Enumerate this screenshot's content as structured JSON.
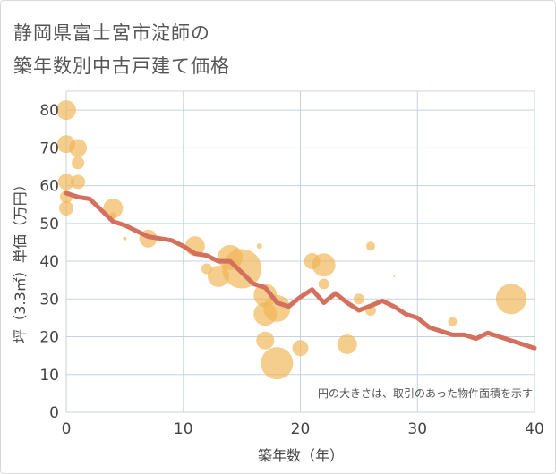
{
  "title_line1": "静岡県富士宮市淀師の",
  "title_line2": "築年数別中古戸建て価格",
  "chart_data": {
    "type": "scatter",
    "xlabel": "築年数（年）",
    "ylabel": "坪（3.3㎡）単価（万円）",
    "xlim": [
      0,
      40
    ],
    "ylim": [
      0,
      85
    ],
    "x_ticks": [
      "0",
      "10",
      "20",
      "30",
      "40"
    ],
    "y_ticks": [
      "0",
      "10",
      "20",
      "30",
      "40",
      "50",
      "60",
      "70",
      "80"
    ],
    "grid": true,
    "note": "円の大きさは、取引のあった物件面積を示す",
    "colors": {
      "bubble": "#f0b655",
      "trend": "#d4705e",
      "grid": "#c5d3df"
    },
    "bubbles": [
      {
        "x": 0,
        "y": 80,
        "s": 11
      },
      {
        "x": 0,
        "y": 71,
        "s": 10
      },
      {
        "x": 0,
        "y": 61,
        "s": 9
      },
      {
        "x": 0,
        "y": 57,
        "s": 7
      },
      {
        "x": 0,
        "y": 54,
        "s": 8
      },
      {
        "x": 1,
        "y": 70,
        "s": 10
      },
      {
        "x": 1,
        "y": 66,
        "s": 7
      },
      {
        "x": 1,
        "y": 61,
        "s": 8
      },
      {
        "x": 4,
        "y": 54,
        "s": 11
      },
      {
        "x": 4,
        "y": 52,
        "s": 4
      },
      {
        "x": 5,
        "y": 46,
        "s": 2
      },
      {
        "x": 7,
        "y": 46,
        "s": 10
      },
      {
        "x": 11,
        "y": 44,
        "s": 11
      },
      {
        "x": 12,
        "y": 38,
        "s": 6
      },
      {
        "x": 13,
        "y": 36,
        "s": 12
      },
      {
        "x": 14,
        "y": 41,
        "s": 14
      },
      {
        "x": 14.5,
        "y": 43,
        "s": 2
      },
      {
        "x": 15,
        "y": 38,
        "s": 22
      },
      {
        "x": 16.5,
        "y": 44,
        "s": 3
      },
      {
        "x": 17,
        "y": 31,
        "s": 13
      },
      {
        "x": 17,
        "y": 26,
        "s": 13
      },
      {
        "x": 17,
        "y": 19,
        "s": 10
      },
      {
        "x": 18,
        "y": 27.5,
        "s": 15
      },
      {
        "x": 18,
        "y": 13,
        "s": 18
      },
      {
        "x": 20,
        "y": 17,
        "s": 9
      },
      {
        "x": 21,
        "y": 40,
        "s": 9
      },
      {
        "x": 22,
        "y": 39,
        "s": 13
      },
      {
        "x": 22,
        "y": 34,
        "s": 6
      },
      {
        "x": 24,
        "y": 18,
        "s": 11
      },
      {
        "x": 25,
        "y": 30,
        "s": 6
      },
      {
        "x": 26,
        "y": 44,
        "s": 5
      },
      {
        "x": 26,
        "y": 27,
        "s": 6
      },
      {
        "x": 28,
        "y": 36,
        "s": 1
      },
      {
        "x": 33,
        "y": 24,
        "s": 5
      },
      {
        "x": 38,
        "y": 30,
        "s": 17
      }
    ],
    "trend": {
      "x": [
        0,
        1,
        2,
        3,
        4,
        5,
        6,
        7,
        8,
        9,
        10,
        11,
        12,
        13,
        14,
        15,
        16,
        17,
        18,
        19,
        20,
        21,
        22,
        23,
        24,
        25,
        26,
        27,
        28,
        29,
        30,
        31,
        32,
        33,
        34,
        35,
        36,
        37,
        38,
        39,
        40
      ],
      "y": [
        58,
        57,
        56.5,
        53.5,
        50.5,
        49.5,
        48,
        46.5,
        46,
        45.5,
        44,
        42,
        41.5,
        40,
        40,
        37,
        34,
        33,
        29,
        28,
        30.5,
        32.5,
        29,
        31.5,
        29,
        27,
        28.2,
        29.5,
        28,
        26,
        25,
        22.5,
        21.5,
        20.5,
        20.5,
        19.5,
        21,
        20,
        19,
        18,
        17
      ]
    }
  }
}
